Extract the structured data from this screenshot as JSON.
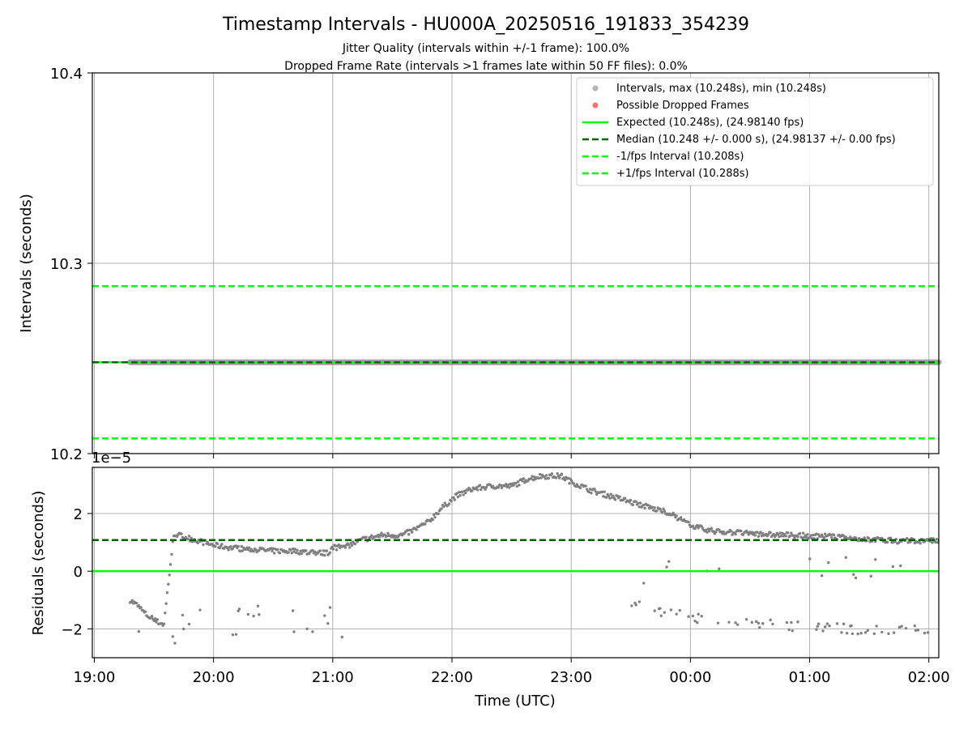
{
  "title": "Timestamp Intervals - HU000A_20250516_191833_354239",
  "subtitle_lines": [
    "Jitter Quality (intervals within +/-1 frame): 100.0%",
    "Dropped Frame Rate (intervals >1 frames late within 50 FF files): 0.0%"
  ],
  "colors": {
    "points": "#808080",
    "dropped": "#ff4040",
    "expected": "#00ff00",
    "median": "#006400",
    "fps_band": "#00ff00",
    "grid": "#b0b0b0"
  },
  "chart_data": [
    {
      "type": "scatter",
      "panel": "top",
      "ylabel": "Intervals (seconds)",
      "ylim": [
        10.2,
        10.4
      ],
      "yticks": [
        "10.2",
        "10.3",
        "10.4"
      ],
      "grid": true,
      "legend_position": "upper-right",
      "legend": [
        "Intervals, max (10.248s), min (10.248s)",
        "Possible Dropped Frames",
        "Expected (10.248s), (24.98140 fps)",
        "Median (10.248 +/- 0.000 s), (24.98137 +/- 0.00 fps)",
        "-1/fps Interval (10.208s)",
        "+1/fps Interval (10.288s)"
      ],
      "series": [
        {
          "name": "Intervals, max (10.248s), min (10.248s)",
          "x_range": [
            "19:18",
            "02:05"
          ],
          "y": 10.248
        },
        {
          "name": "Expected (10.248s), (24.98140 fps)",
          "y": 10.248
        },
        {
          "name": "Median (10.248 +/- 0.000 s), (24.98137 +/- 0.00 fps)",
          "y": 10.248
        },
        {
          "name": "-1/fps Interval (10.208s)",
          "y": 10.208
        },
        {
          "name": "+1/fps Interval (10.288s)",
          "y": 10.288
        }
      ]
    },
    {
      "type": "scatter",
      "panel": "bottom",
      "xlabel": "Time (UTC)",
      "ylabel": "Residuals (seconds)",
      "offset_label": "1e−5",
      "xlim": [
        "18:59",
        "02:05"
      ],
      "xticks": [
        "19:00",
        "20:00",
        "21:00",
        "22:00",
        "23:00",
        "00:00",
        "01:00",
        "02:00"
      ],
      "ylim": [
        -3.0,
        3.6
      ],
      "yticks": [
        "−2",
        "0",
        "2"
      ],
      "grid": true,
      "expected_residual": 0,
      "median_residual": 1.08,
      "residual_trend_minutes_since_19_00": [
        [
          18,
          -1.0
        ],
        [
          22,
          -1.2
        ],
        [
          26,
          -1.5
        ],
        [
          30,
          -1.7
        ],
        [
          35,
          -1.85
        ],
        [
          40,
          1.3
        ],
        [
          50,
          1.1
        ],
        [
          60,
          0.9
        ],
        [
          70,
          0.8
        ],
        [
          80,
          0.75
        ],
        [
          90,
          0.7
        ],
        [
          100,
          0.7
        ],
        [
          110,
          0.65
        ],
        [
          118,
          0.62
        ],
        [
          125,
          0.8
        ],
        [
          135,
          1.1
        ],
        [
          145,
          1.25
        ],
        [
          155,
          1.25
        ],
        [
          160,
          1.4
        ],
        [
          168,
          1.7
        ],
        [
          175,
          2.2
        ],
        [
          182,
          2.6
        ],
        [
          190,
          2.85
        ],
        [
          200,
          2.95
        ],
        [
          210,
          2.95
        ],
        [
          218,
          3.2
        ],
        [
          225,
          3.3
        ],
        [
          235,
          3.3
        ],
        [
          240,
          3.1
        ],
        [
          250,
          2.8
        ],
        [
          260,
          2.6
        ],
        [
          270,
          2.4
        ],
        [
          280,
          2.2
        ],
        [
          290,
          2.0
        ],
        [
          300,
          1.6
        ],
        [
          310,
          1.4
        ],
        [
          330,
          1.3
        ],
        [
          350,
          1.25
        ],
        [
          370,
          1.2
        ],
        [
          390,
          1.1
        ],
        [
          405,
          1.05
        ],
        [
          420,
          1.05
        ],
        [
          425,
          1.05
        ]
      ],
      "residual_low_branch_minutes_since_19_00": [
        [
          270,
          -1.1
        ],
        [
          280,
          -1.3
        ],
        [
          290,
          -1.45
        ],
        [
          300,
          -1.6
        ],
        [
          320,
          -1.75
        ],
        [
          340,
          -1.85
        ],
        [
          360,
          -1.95
        ],
        [
          380,
          -2.0
        ],
        [
          400,
          -2.05
        ],
        [
          420,
          -2.05
        ]
      ]
    }
  ]
}
